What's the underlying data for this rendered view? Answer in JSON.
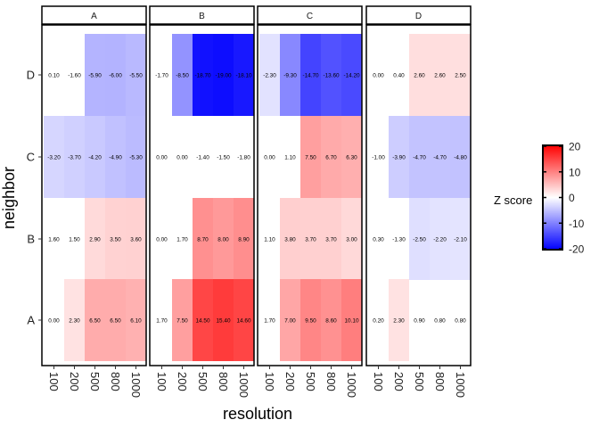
{
  "chart_data": {
    "type": "heatmap",
    "facets": [
      "A",
      "B",
      "C",
      "D"
    ],
    "x_categories": [
      "100",
      "200",
      "500",
      "800",
      "1000"
    ],
    "y_categories": [
      "A",
      "B",
      "C",
      "D"
    ],
    "xlabel": "resolution",
    "ylabel": "neighbor",
    "legend": {
      "title": "Z score",
      "ticks": [
        "20",
        "10",
        "0",
        "-10",
        "-20"
      ],
      "limits": [
        -20,
        20
      ],
      "colors": {
        "low": "#0000ff",
        "mid": "#ffffff",
        "high": "#ff0000"
      },
      "position": "right"
    },
    "missing": "blank",
    "panels": [
      {
        "facet": "A",
        "rows": [
          {
            "neighbor": "D",
            "values": [
              0.1,
              -1.6,
              -5.9,
              -6.0,
              -5.5
            ],
            "labels": [
              "0.10",
              "-1.60",
              "-5.90",
              "-6.00",
              "-5.50"
            ],
            "filled": [
              false,
              false,
              true,
              true,
              true
            ]
          },
          {
            "neighbor": "C",
            "values": [
              -3.2,
              -3.7,
              -4.2,
              -4.9,
              -5.3
            ],
            "labels": [
              "-3.20",
              "-3.70",
              "-4.20",
              "-4.90",
              "-5.30"
            ],
            "filled": [
              true,
              true,
              true,
              true,
              true
            ]
          },
          {
            "neighbor": "B",
            "values": [
              1.6,
              1.5,
              2.9,
              3.5,
              3.6
            ],
            "labels": [
              "1.60",
              "1.50",
              "2.90",
              "3.50",
              "3.60"
            ],
            "filled": [
              false,
              false,
              true,
              true,
              true
            ]
          },
          {
            "neighbor": "A",
            "values": [
              0.0,
              2.3,
              6.5,
              6.5,
              6.1
            ],
            "labels": [
              "0.00",
              "2.30",
              "6.50",
              "6.50",
              "6.10"
            ],
            "filled": [
              false,
              true,
              true,
              true,
              true
            ]
          }
        ]
      },
      {
        "facet": "B",
        "rows": [
          {
            "neighbor": "D",
            "values": [
              -1.7,
              -8.5,
              -18.7,
              -19.0,
              -18.1
            ],
            "labels": [
              "-1.70",
              "-8.50",
              "-18.70",
              "-19.00",
              "-18.10"
            ],
            "filled": [
              false,
              true,
              true,
              true,
              true
            ]
          },
          {
            "neighbor": "C",
            "values": [
              0.0,
              0.0,
              -1.4,
              -1.5,
              -1.8
            ],
            "labels": [
              "0.00",
              "0.00",
              "-1.40",
              "-1.50",
              "-1.80"
            ],
            "filled": [
              false,
              false,
              false,
              false,
              false
            ]
          },
          {
            "neighbor": "B",
            "values": [
              0.0,
              1.7,
              8.7,
              8.0,
              8.9
            ],
            "labels": [
              "0.00",
              "1.70",
              "8.70",
              "8.00",
              "8.90"
            ],
            "filled": [
              false,
              false,
              true,
              true,
              true
            ]
          },
          {
            "neighbor": "A",
            "values": [
              1.7,
              7.5,
              14.5,
              15.4,
              14.6
            ],
            "labels": [
              "1.70",
              "7.50",
              "14.50",
              "15.40",
              "14.60"
            ],
            "filled": [
              false,
              true,
              true,
              true,
              true
            ]
          }
        ]
      },
      {
        "facet": "C",
        "rows": [
          {
            "neighbor": "D",
            "values": [
              -2.3,
              -9.3,
              -14.7,
              -13.6,
              -14.2
            ],
            "labels": [
              "-2.30",
              "-9.30",
              "-14.70",
              "-13.60",
              "-14.20"
            ],
            "filled": [
              true,
              true,
              true,
              true,
              true
            ]
          },
          {
            "neighbor": "C",
            "values": [
              0.0,
              1.1,
              7.5,
              6.7,
              6.3
            ],
            "labels": [
              "0.00",
              "1.10",
              "7.50",
              "6.70",
              "6.30"
            ],
            "filled": [
              false,
              false,
              true,
              true,
              true
            ]
          },
          {
            "neighbor": "B",
            "values": [
              1.1,
              3.8,
              3.7,
              3.7,
              3.0
            ],
            "labels": [
              "1.10",
              "3.80",
              "3.70",
              "3.70",
              "3.00"
            ],
            "filled": [
              false,
              true,
              true,
              true,
              true
            ]
          },
          {
            "neighbor": "A",
            "values": [
              1.7,
              7.0,
              9.5,
              8.6,
              10.1
            ],
            "labels": [
              "1.70",
              "7.00",
              "9.50",
              "8.60",
              "10.10"
            ],
            "filled": [
              false,
              true,
              true,
              true,
              true
            ]
          }
        ]
      },
      {
        "facet": "D",
        "rows": [
          {
            "neighbor": "D",
            "values": [
              0.0,
              0.4,
              2.6,
              2.6,
              2.5
            ],
            "labels": [
              "0.00",
              "0.40",
              "2.60",
              "2.60",
              "2.50"
            ],
            "filled": [
              false,
              false,
              true,
              true,
              true
            ]
          },
          {
            "neighbor": "C",
            "values": [
              -1.0,
              -3.9,
              -4.7,
              -4.7,
              -4.8
            ],
            "labels": [
              "-1.00",
              "-3.90",
              "-4.70",
              "-4.70",
              "-4.80"
            ],
            "filled": [
              false,
              true,
              true,
              true,
              true
            ]
          },
          {
            "neighbor": "B",
            "values": [
              0.3,
              -1.3,
              -2.5,
              -2.2,
              -2.1
            ],
            "labels": [
              "0.30",
              "-1.30",
              "-2.50",
              "-2.20",
              "-2.10"
            ],
            "filled": [
              false,
              false,
              true,
              true,
              true
            ]
          },
          {
            "neighbor": "A",
            "values": [
              0.2,
              2.3,
              0.9,
              0.8,
              0.8
            ],
            "labels": [
              "0.20",
              "2.30",
              "0.90",
              "0.80",
              "0.80"
            ],
            "filled": [
              false,
              true,
              false,
              false,
              false
            ]
          }
        ]
      }
    ]
  }
}
